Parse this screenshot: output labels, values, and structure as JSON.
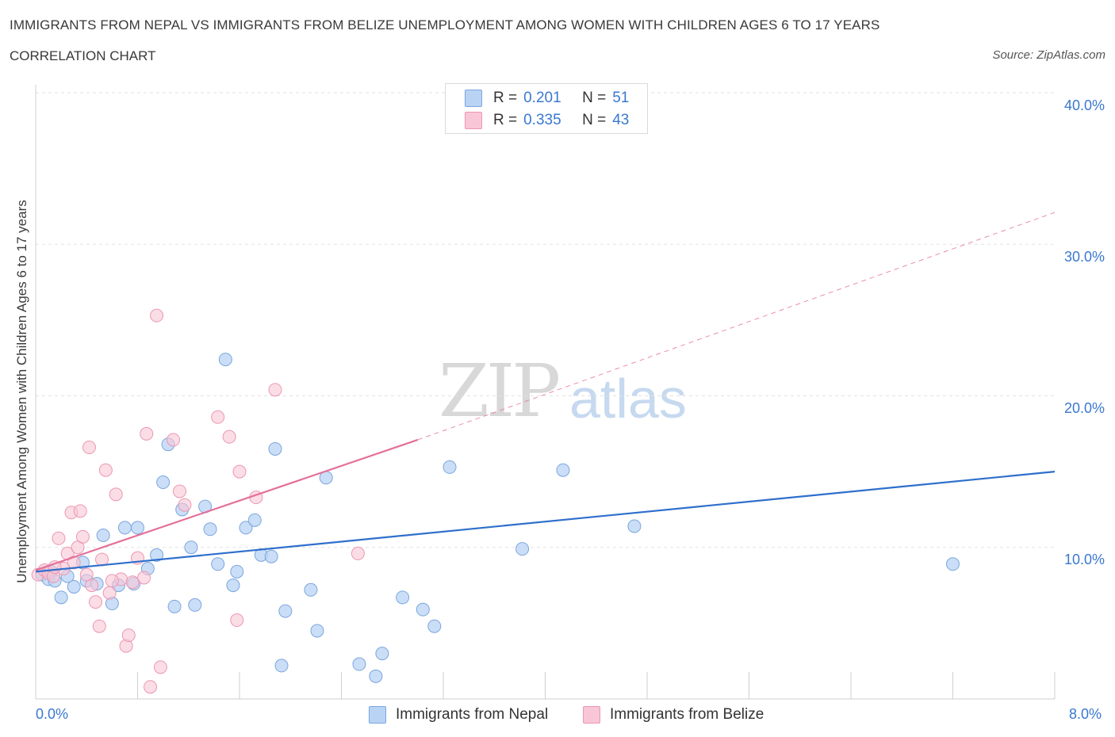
{
  "title": "IMMIGRANTS FROM NEPAL VS IMMIGRANTS FROM BELIZE UNEMPLOYMENT AMONG WOMEN WITH CHILDREN AGES 6 TO 17 YEARS",
  "subtitle": "CORRELATION CHART",
  "source": "Source: ZipAtlas.com",
  "watermark": {
    "zip": "ZIP",
    "atlas": "atlas"
  },
  "legend": {
    "nepal": {
      "r_label": "R =",
      "r_value": "0.201",
      "n_label": "N =",
      "n_value": "51"
    },
    "belize": {
      "r_label": "R =",
      "r_value": "0.335",
      "n_label": "N =",
      "n_value": "43"
    }
  },
  "bottom_legend": {
    "nepal": "Immigrants from Nepal",
    "belize": "Immigrants from Belize"
  },
  "colors": {
    "nepal_fill": "#b9d3f4",
    "nepal_stroke": "#7aa6de",
    "nepal_line": "#2f6fcc",
    "belize_fill": "#f8c6d6",
    "belize_stroke": "#ec97b2",
    "belize_line": "#e4709a",
    "tick_text": "#3a78d0",
    "grid": "#e2e2e2"
  },
  "chart_data": {
    "type": "scatter",
    "ylabel": "Unemployment Among Women with Children Ages 6 to 17 years",
    "x_tick_labels": [
      "0.0%",
      "8.0%"
    ],
    "y_tick_labels": [
      "10.0%",
      "20.0%",
      "30.0%",
      "40.0%"
    ],
    "xlim": [
      0,
      8
    ],
    "ylim": [
      0,
      40
    ],
    "y_ticks": [
      10,
      20,
      30,
      40
    ],
    "x_ticks": [
      0,
      0.8,
      1.6,
      2.4,
      3.2,
      4.0,
      4.8,
      5.6,
      6.4,
      7.2,
      8.0
    ],
    "series": [
      {
        "name": "Immigrants from Nepal",
        "trend": {
          "x": [
            0,
            8
          ],
          "y": [
            8.4,
            15.0
          ],
          "dashed_to": null
        },
        "points": [
          [
            0.05,
            8.2
          ],
          [
            0.1,
            7.9
          ],
          [
            0.12,
            8.4
          ],
          [
            0.15,
            7.8
          ],
          [
            0.2,
            6.7
          ],
          [
            0.25,
            8.1
          ],
          [
            0.3,
            7.4
          ],
          [
            0.37,
            9.0
          ],
          [
            0.4,
            7.8
          ],
          [
            0.48,
            7.6
          ],
          [
            0.53,
            10.8
          ],
          [
            0.6,
            6.3
          ],
          [
            0.65,
            7.5
          ],
          [
            0.7,
            11.3
          ],
          [
            0.77,
            7.6
          ],
          [
            0.8,
            11.3
          ],
          [
            0.88,
            8.6
          ],
          [
            0.95,
            9.5
          ],
          [
            1.0,
            14.3
          ],
          [
            1.04,
            16.8
          ],
          [
            1.09,
            6.1
          ],
          [
            1.15,
            12.5
          ],
          [
            1.22,
            10.0
          ],
          [
            1.25,
            6.2
          ],
          [
            1.33,
            12.7
          ],
          [
            1.37,
            11.2
          ],
          [
            1.43,
            8.9
          ],
          [
            1.49,
            22.4
          ],
          [
            1.55,
            7.5
          ],
          [
            1.58,
            8.4
          ],
          [
            1.65,
            11.3
          ],
          [
            1.72,
            11.8
          ],
          [
            1.77,
            9.5
          ],
          [
            1.85,
            9.4
          ],
          [
            1.88,
            16.5
          ],
          [
            1.93,
            2.2
          ],
          [
            1.96,
            5.8
          ],
          [
            2.16,
            7.2
          ],
          [
            2.21,
            4.5
          ],
          [
            2.28,
            14.6
          ],
          [
            2.54,
            2.3
          ],
          [
            2.67,
            1.5
          ],
          [
            2.72,
            3.0
          ],
          [
            2.88,
            6.7
          ],
          [
            3.04,
            5.9
          ],
          [
            3.13,
            4.8
          ],
          [
            3.25,
            15.3
          ],
          [
            3.82,
            9.9
          ],
          [
            4.14,
            15.1
          ],
          [
            4.7,
            11.4
          ],
          [
            7.2,
            8.9
          ]
        ]
      },
      {
        "name": "Immigrants from Belize",
        "trend": {
          "x": [
            0,
            3.0
          ],
          "y": [
            8.5,
            17.1
          ],
          "dashed_x": [
            3.0,
            8.0
          ],
          "dashed_y": [
            17.1,
            32.1
          ]
        },
        "points": [
          [
            0.02,
            8.2
          ],
          [
            0.07,
            8.5
          ],
          [
            0.1,
            8.3
          ],
          [
            0.14,
            8.1
          ],
          [
            0.18,
            10.6
          ],
          [
            0.22,
            8.6
          ],
          [
            0.25,
            9.6
          ],
          [
            0.28,
            12.3
          ],
          [
            0.33,
            10.0
          ],
          [
            0.35,
            12.4
          ],
          [
            0.37,
            10.7
          ],
          [
            0.42,
            16.6
          ],
          [
            0.44,
            7.5
          ],
          [
            0.47,
            6.4
          ],
          [
            0.5,
            4.8
          ],
          [
            0.52,
            9.2
          ],
          [
            0.55,
            15.1
          ],
          [
            0.58,
            7.0
          ],
          [
            0.63,
            13.5
          ],
          [
            0.67,
            7.9
          ],
          [
            0.71,
            3.5
          ],
          [
            0.73,
            4.2
          ],
          [
            0.76,
            7.7
          ],
          [
            0.8,
            9.3
          ],
          [
            0.85,
            8.0
          ],
          [
            0.87,
            17.5
          ],
          [
            0.9,
            0.8
          ],
          [
            0.95,
            25.3
          ],
          [
            0.98,
            2.1
          ],
          [
            1.08,
            17.1
          ],
          [
            1.13,
            13.7
          ],
          [
            1.17,
            12.8
          ],
          [
            1.43,
            18.6
          ],
          [
            1.52,
            17.3
          ],
          [
            1.58,
            5.2
          ],
          [
            1.6,
            15.0
          ],
          [
            1.73,
            13.3
          ],
          [
            1.88,
            20.4
          ],
          [
            2.53,
            9.6
          ],
          [
            0.15,
            8.7
          ],
          [
            0.3,
            9.0
          ],
          [
            0.6,
            7.8
          ],
          [
            0.4,
            8.2
          ]
        ]
      }
    ]
  }
}
